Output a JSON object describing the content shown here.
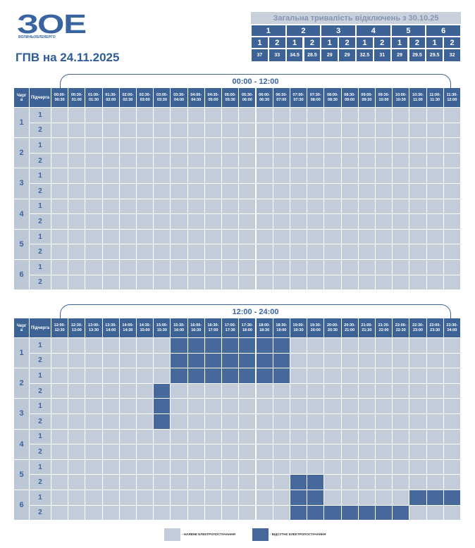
{
  "logo": {
    "mark": "ЗОЕ",
    "name": "ВОЛИНЬОБЛЕНЕРГО"
  },
  "title": "ГПВ на 24.11.2025",
  "summary": {
    "title": "Загальна тривалість відключень з 30.10.25",
    "queues": [
      "1",
      "2",
      "3",
      "4",
      "5",
      "6"
    ],
    "subqueues": [
      "1",
      "2",
      "1",
      "2",
      "1",
      "2",
      "1",
      "2",
      "1",
      "2",
      "1",
      "2"
    ],
    "values": [
      37,
      33,
      34.5,
      28.5,
      29,
      29,
      32.5,
      31,
      29,
      29.5,
      29.5,
      32
    ]
  },
  "schedules": [
    {
      "period": "00:00 - 12:00",
      "queue_header": "Черга",
      "subqueue_header": "Підчерга",
      "slots": [
        "00:00-00:30",
        "00:30-01:00",
        "01:00-01:30",
        "01:30-02:00",
        "02:00-02:30",
        "02:30-03:00",
        "03:00-03:30",
        "03:30-04:00",
        "04:00-04:30",
        "04:30-05:00",
        "05:00-05:30",
        "05:30-06:00",
        "06:00-06:30",
        "06:30-07:00",
        "07:00-07:30",
        "07:30-08:00",
        "08:00-08:30",
        "08:30-09:00",
        "09:00-09:30",
        "09:30-10:00",
        "10:00-10:30",
        "10:30-11:00",
        "11:00-11:30",
        "11:30-12:00"
      ],
      "queues": [
        {
          "label": "1",
          "subqueues": [
            {
              "label": "1",
              "off": [
                0,
                0,
                0,
                0,
                0,
                0,
                0,
                0,
                0,
                0,
                0,
                0,
                0,
                0,
                0,
                0,
                0,
                0,
                0,
                0,
                0,
                0,
                0,
                0
              ]
            },
            {
              "label": "2",
              "off": [
                0,
                0,
                0,
                0,
                0,
                0,
                0,
                0,
                0,
                0,
                0,
                0,
                0,
                0,
                0,
                0,
                0,
                0,
                0,
                0,
                0,
                0,
                0,
                0
              ]
            }
          ]
        },
        {
          "label": "2",
          "subqueues": [
            {
              "label": "1",
              "off": [
                0,
                0,
                0,
                0,
                0,
                0,
                0,
                0,
                0,
                0,
                0,
                0,
                0,
                0,
                0,
                0,
                0,
                0,
                0,
                0,
                0,
                0,
                0,
                0
              ]
            },
            {
              "label": "2",
              "off": [
                0,
                0,
                0,
                0,
                0,
                0,
                0,
                0,
                0,
                0,
                0,
                0,
                0,
                0,
                0,
                0,
                0,
                0,
                0,
                0,
                0,
                0,
                0,
                0
              ]
            }
          ]
        },
        {
          "label": "3",
          "subqueues": [
            {
              "label": "1",
              "off": [
                0,
                0,
                0,
                0,
                0,
                0,
                0,
                0,
                0,
                0,
                0,
                0,
                0,
                0,
                0,
                0,
                0,
                0,
                0,
                0,
                0,
                0,
                0,
                0
              ]
            },
            {
              "label": "2",
              "off": [
                0,
                0,
                0,
                0,
                0,
                0,
                0,
                0,
                0,
                0,
                0,
                0,
                0,
                0,
                0,
                0,
                0,
                0,
                0,
                0,
                0,
                0,
                0,
                0
              ]
            }
          ]
        },
        {
          "label": "4",
          "subqueues": [
            {
              "label": "1",
              "off": [
                0,
                0,
                0,
                0,
                0,
                0,
                0,
                0,
                0,
                0,
                0,
                0,
                0,
                0,
                0,
                0,
                0,
                0,
                0,
                0,
                0,
                0,
                0,
                0
              ]
            },
            {
              "label": "2",
              "off": [
                0,
                0,
                0,
                0,
                0,
                0,
                0,
                0,
                0,
                0,
                0,
                0,
                0,
                0,
                0,
                0,
                0,
                0,
                0,
                0,
                0,
                0,
                0,
                0
              ]
            }
          ]
        },
        {
          "label": "5",
          "subqueues": [
            {
              "label": "1",
              "off": [
                0,
                0,
                0,
                0,
                0,
                0,
                0,
                0,
                0,
                0,
                0,
                0,
                0,
                0,
                0,
                0,
                0,
                0,
                0,
                0,
                0,
                0,
                0,
                0
              ]
            },
            {
              "label": "2",
              "off": [
                0,
                0,
                0,
                0,
                0,
                0,
                0,
                0,
                0,
                0,
                0,
                0,
                0,
                0,
                0,
                0,
                0,
                0,
                0,
                0,
                0,
                0,
                0,
                0
              ]
            }
          ]
        },
        {
          "label": "6",
          "subqueues": [
            {
              "label": "1",
              "off": [
                0,
                0,
                0,
                0,
                0,
                0,
                0,
                0,
                0,
                0,
                0,
                0,
                0,
                0,
                0,
                0,
                0,
                0,
                0,
                0,
                0,
                0,
                0,
                0
              ]
            },
            {
              "label": "2",
              "off": [
                0,
                0,
                0,
                0,
                0,
                0,
                0,
                0,
                0,
                0,
                0,
                0,
                0,
                0,
                0,
                0,
                0,
                0,
                0,
                0,
                0,
                0,
                0,
                0
              ]
            }
          ]
        }
      ]
    },
    {
      "period": "12:00 - 24:00",
      "queue_header": "Черга",
      "subqueue_header": "Підчерга",
      "slots": [
        "12:00-12:30",
        "12:30-13:00",
        "13:00-13:30",
        "13:30-14:00",
        "14:00-14:30",
        "14:30-15:00",
        "15:00-15:30",
        "15:30-16:00",
        "16:00-16:30",
        "16:30-17:00",
        "17:00-17:30",
        "17:30-18:00",
        "18:00-18:30",
        "18:30-19:00",
        "19:00-19:30",
        "19:30-20:00",
        "20:00-20:30",
        "20:30-21:00",
        "21:00-21:30",
        "21:30-22:00",
        "22:00-22:30",
        "22:30-23:00",
        "23:00-23:30",
        "23:30-24:00"
      ],
      "queues": [
        {
          "label": "1",
          "subqueues": [
            {
              "label": "1",
              "off": [
                0,
                0,
                0,
                0,
                0,
                0,
                0,
                1,
                1,
                1,
                1,
                1,
                1,
                1,
                0,
                0,
                0,
                0,
                0,
                0,
                0,
                0,
                0,
                0
              ]
            },
            {
              "label": "2",
              "off": [
                0,
                0,
                0,
                0,
                0,
                0,
                0,
                1,
                1,
                1,
                1,
                1,
                1,
                1,
                0,
                0,
                0,
                0,
                0,
                0,
                0,
                0,
                0,
                0
              ]
            }
          ]
        },
        {
          "label": "2",
          "subqueues": [
            {
              "label": "1",
              "off": [
                0,
                0,
                0,
                0,
                0,
                0,
                0,
                1,
                1,
                1,
                1,
                1,
                1,
                1,
                0,
                0,
                0,
                0,
                0,
                0,
                0,
                0,
                0,
                0
              ]
            },
            {
              "label": "2",
              "off": [
                0,
                0,
                0,
                0,
                0,
                0,
                1,
                0,
                0,
                0,
                0,
                0,
                0,
                0,
                0,
                0,
                0,
                0,
                0,
                0,
                0,
                0,
                0,
                0
              ]
            }
          ]
        },
        {
          "label": "3",
          "subqueues": [
            {
              "label": "1",
              "off": [
                0,
                0,
                0,
                0,
                0,
                0,
                1,
                0,
                0,
                0,
                0,
                0,
                0,
                0,
                0,
                0,
                0,
                0,
                0,
                0,
                0,
                0,
                0,
                0
              ]
            },
            {
              "label": "2",
              "off": [
                0,
                0,
                0,
                0,
                0,
                0,
                1,
                0,
                0,
                0,
                0,
                0,
                0,
                0,
                0,
                0,
                0,
                0,
                0,
                0,
                0,
                0,
                0,
                0
              ]
            }
          ]
        },
        {
          "label": "4",
          "subqueues": [
            {
              "label": "1",
              "off": [
                0,
                0,
                0,
                0,
                0,
                0,
                0,
                0,
                0,
                0,
                0,
                0,
                0,
                0,
                0,
                0,
                0,
                0,
                0,
                0,
                0,
                0,
                0,
                0
              ]
            },
            {
              "label": "2",
              "off": [
                0,
                0,
                0,
                0,
                0,
                0,
                0,
                0,
                0,
                0,
                0,
                0,
                0,
                0,
                0,
                0,
                0,
                0,
                0,
                0,
                0,
                0,
                0,
                0
              ]
            }
          ]
        },
        {
          "label": "5",
          "subqueues": [
            {
              "label": "1",
              "off": [
                0,
                0,
                0,
                0,
                0,
                0,
                0,
                0,
                0,
                0,
                0,
                0,
                0,
                0,
                0,
                0,
                0,
                0,
                0,
                0,
                0,
                0,
                0,
                0
              ]
            },
            {
              "label": "2",
              "off": [
                0,
                0,
                0,
                0,
                0,
                0,
                0,
                0,
                0,
                0,
                0,
                0,
                0,
                0,
                1,
                1,
                0,
                0,
                0,
                0,
                0,
                0,
                0,
                0
              ]
            }
          ]
        },
        {
          "label": "6",
          "subqueues": [
            {
              "label": "1",
              "off": [
                0,
                0,
                0,
                0,
                0,
                0,
                0,
                0,
                0,
                0,
                0,
                0,
                0,
                0,
                1,
                1,
                0,
                0,
                0,
                0,
                0,
                1,
                1,
                1
              ]
            },
            {
              "label": "2",
              "off": [
                0,
                0,
                0,
                0,
                0,
                0,
                0,
                0,
                0,
                0,
                0,
                0,
                0,
                0,
                1,
                1,
                1,
                1,
                1,
                1,
                1,
                0,
                0,
                0
              ]
            }
          ]
        }
      ]
    }
  ],
  "legend": [
    {
      "label": "- НАЯВНЕ ЕЛЕКТРОПОСТАЧАННЯ"
    },
    {
      "label": "- ВІДСУТНЄ ЕЛЕКТРОПОСТАЧАННЯ"
    }
  ]
}
